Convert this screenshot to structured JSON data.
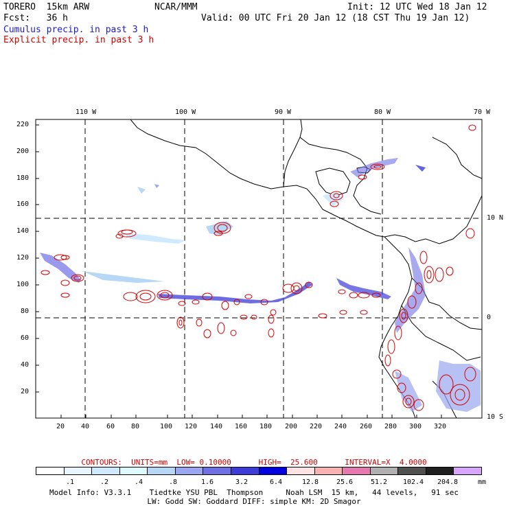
{
  "header": {
    "model": "TORERO  15km ARW",
    "org": "NCAR/MMM",
    "init": "Init: 12 UTC Wed 18 Jan 12",
    "fcst": "Fcst:   36 h",
    "valid": "Valid: 00 UTC Fri 20 Jan 12 (18 CST Thu 19 Jan 12)",
    "field1": "Cumulus precip. in past 3 h",
    "field2": "Explicit precip. in past 3 h",
    "field1_color": "#1a1ad6",
    "field2_color": "#d40000"
  },
  "map": {
    "lon_labels": [
      "110 W",
      "100 W",
      "90 W",
      "80 W",
      "70 W"
    ],
    "lat_labels": [
      "10 N",
      "0",
      "10 S"
    ],
    "x_ticks": [
      "20",
      "40",
      "60",
      "80",
      "100",
      "120",
      "140",
      "160",
      "180",
      "200",
      "220",
      "240",
      "260",
      "280",
      "300",
      "320"
    ],
    "y_ticks": [
      "220",
      "200",
      "180",
      "160",
      "140",
      "120",
      "100",
      "80",
      "60",
      "40",
      "20"
    ]
  },
  "contours_line": "CONTOURS:  UNITS=mm  LOW= 0.10000      HIGH=  25.600      INTERVAL=X  4.0000",
  "colorbar": {
    "colors": [
      "#ffffff",
      "#e8f4ff",
      "#cfe9ff",
      "#ddfcff",
      "#b6d7f5",
      "#9aa6ef",
      "#6f6fe6",
      "#3c3cd8",
      "#0000e0",
      "#ffe2e2",
      "#f8b2b2",
      "#e878b0",
      "#b0b0b0",
      "#505050",
      "#202020",
      "#d9a6ff"
    ],
    "labels": [
      ".1",
      ".2",
      ".4",
      ".8",
      "1.6",
      "3.2",
      "6.4",
      "12.8",
      "25.6",
      "51.2",
      "102.4",
      "204.8"
    ],
    "units": "mm"
  },
  "footer": {
    "line1": "Model Info: V3.3.1    Tiedtke YSU PBL  Thompson     Noah LSM  15 km,   44 levels,   91 sec",
    "line2": "LW: Godd SW: Goddard DIFF: simple KM: 2D Smagor"
  }
}
